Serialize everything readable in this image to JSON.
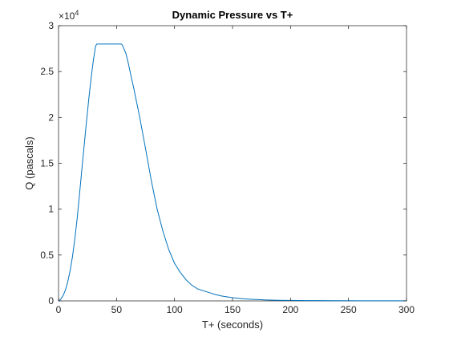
{
  "chart_data": {
    "type": "line",
    "title": "Dynamic Pressure vs T+",
    "xlabel": "T+ (seconds)",
    "ylabel": "Q (pascals)",
    "y_exponent_label": "×10",
    "y_exponent_power": "4",
    "xlim": [
      0,
      300
    ],
    "ylim": [
      0,
      3
    ],
    "xticks": [
      0,
      50,
      100,
      150,
      200,
      250,
      300
    ],
    "yticks": [
      0,
      0.5,
      1,
      1.5,
      2,
      2.5,
      3
    ],
    "xtick_labels": [
      "0",
      "50",
      "100",
      "150",
      "200",
      "250",
      "300"
    ],
    "ytick_labels": [
      "0",
      "0.5",
      "1",
      "1.5",
      "2",
      "2.5",
      "3"
    ],
    "grid": false,
    "line_color": "#0072BD",
    "series": [
      {
        "x": [
          0,
          2,
          4,
          6,
          8,
          10,
          12,
          14,
          16,
          18,
          20,
          22,
          24,
          26,
          28,
          30,
          32,
          33,
          34,
          36,
          40,
          45,
          50,
          54,
          55,
          56,
          58,
          60,
          62,
          65,
          70,
          75,
          80,
          85,
          90,
          95,
          100,
          105,
          110,
          115,
          120,
          125,
          130,
          135,
          140,
          150,
          160,
          170,
          180,
          190,
          200,
          220,
          240,
          260,
          280,
          300
        ],
        "y": [
          0,
          0.02,
          0.06,
          0.12,
          0.21,
          0.33,
          0.48,
          0.67,
          0.89,
          1.15,
          1.42,
          1.68,
          1.94,
          2.19,
          2.42,
          2.62,
          2.78,
          2.8,
          2.8,
          2.8,
          2.8,
          2.8,
          2.8,
          2.8,
          2.79,
          2.76,
          2.7,
          2.6,
          2.48,
          2.31,
          2.0,
          1.66,
          1.31,
          1.0,
          0.76,
          0.56,
          0.41,
          0.31,
          0.23,
          0.17,
          0.13,
          0.11,
          0.09,
          0.07,
          0.055,
          0.035,
          0.022,
          0.015,
          0.01,
          0.007,
          0.005,
          0.003,
          0.002,
          0.0015,
          0.001,
          0.001
        ]
      }
    ]
  }
}
